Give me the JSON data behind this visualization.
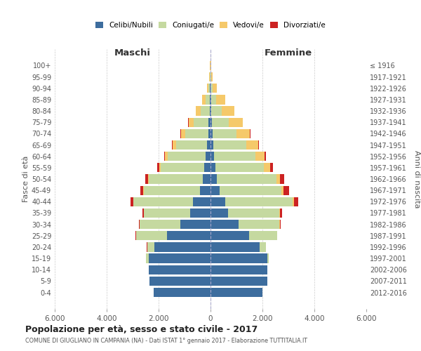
{
  "age_groups": [
    "0-4",
    "5-9",
    "10-14",
    "15-19",
    "20-24",
    "25-29",
    "30-34",
    "35-39",
    "40-44",
    "45-49",
    "50-54",
    "55-59",
    "60-64",
    "65-69",
    "70-74",
    "75-79",
    "80-84",
    "85-89",
    "90-94",
    "95-99",
    "100+"
  ],
  "birth_years": [
    "2012-2016",
    "2007-2011",
    "2002-2006",
    "1997-2001",
    "1992-1996",
    "1987-1991",
    "1982-1986",
    "1977-1981",
    "1972-1976",
    "1967-1971",
    "1962-1966",
    "1957-1961",
    "1952-1956",
    "1947-1951",
    "1942-1946",
    "1937-1941",
    "1932-1936",
    "1927-1931",
    "1922-1926",
    "1917-1921",
    "≤ 1916"
  ],
  "males": {
    "celibi": [
      2200,
      2350,
      2380,
      2380,
      2150,
      1680,
      1150,
      780,
      680,
      400,
      290,
      250,
      180,
      140,
      90,
      70,
      40,
      25,
      15,
      8,
      5
    ],
    "coniugati": [
      0,
      5,
      10,
      100,
      290,
      1180,
      1580,
      1780,
      2280,
      2180,
      2080,
      1680,
      1480,
      1180,
      880,
      580,
      340,
      175,
      60,
      20,
      5
    ],
    "vedovi": [
      0,
      0,
      0,
      0,
      5,
      5,
      5,
      8,
      18,
      28,
      38,
      55,
      95,
      135,
      175,
      195,
      195,
      115,
      58,
      18,
      5
    ],
    "divorziati": [
      0,
      0,
      0,
      0,
      5,
      15,
      28,
      48,
      98,
      98,
      98,
      78,
      38,
      28,
      18,
      8,
      5,
      5,
      0,
      0,
      0
    ]
  },
  "females": {
    "nubili": [
      2000,
      2180,
      2180,
      2180,
      1880,
      1480,
      1080,
      680,
      580,
      340,
      250,
      180,
      140,
      110,
      80,
      60,
      35,
      20,
      10,
      6,
      4
    ],
    "coniugate": [
      0,
      5,
      5,
      60,
      250,
      1080,
      1580,
      1980,
      2580,
      2380,
      2280,
      1880,
      1580,
      1280,
      930,
      630,
      390,
      195,
      78,
      28,
      5
    ],
    "vedove": [
      0,
      0,
      0,
      0,
      5,
      5,
      15,
      28,
      58,
      98,
      148,
      248,
      348,
      448,
      498,
      548,
      498,
      348,
      148,
      48,
      10
    ],
    "divorziate": [
      0,
      0,
      0,
      0,
      5,
      10,
      28,
      78,
      148,
      198,
      148,
      98,
      58,
      38,
      28,
      18,
      8,
      5,
      5,
      0,
      0
    ]
  },
  "color_celibi": "#3d6d9e",
  "color_coniugati": "#c5d9a0",
  "color_vedovi": "#f5c96a",
  "color_divorziati": "#cc2222",
  "title": "Popolazione per età, sesso e stato civile - 2017",
  "subtitle": "COMUNE DI GIUGLIANO IN CAMPANIA (NA) - Dati ISTAT 1° gennaio 2017 - Elaborazione TUTTITALIA.IT",
  "xlabel_left": "Maschi",
  "xlabel_right": "Femmine",
  "ylabel_left": "Fasce di età",
  "ylabel_right": "Anni di nascita",
  "xlim": 6000
}
